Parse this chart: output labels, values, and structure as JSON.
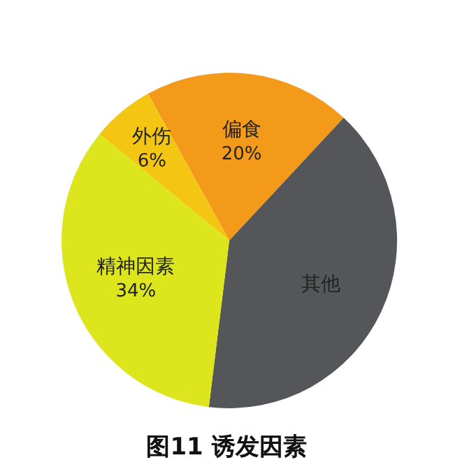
{
  "chart_data": {
    "type": "pie",
    "title": "图11 诱发因素",
    "categories": [
      "偏食",
      "其他",
      "精神因素",
      "外伤"
    ],
    "values": [
      20,
      40,
      34,
      6
    ],
    "value_labels": [
      "20%",
      null,
      "34%",
      "6%"
    ],
    "colors": [
      "#f39a1a",
      "#55565a",
      "#dde61c",
      "#f5c514"
    ]
  }
}
